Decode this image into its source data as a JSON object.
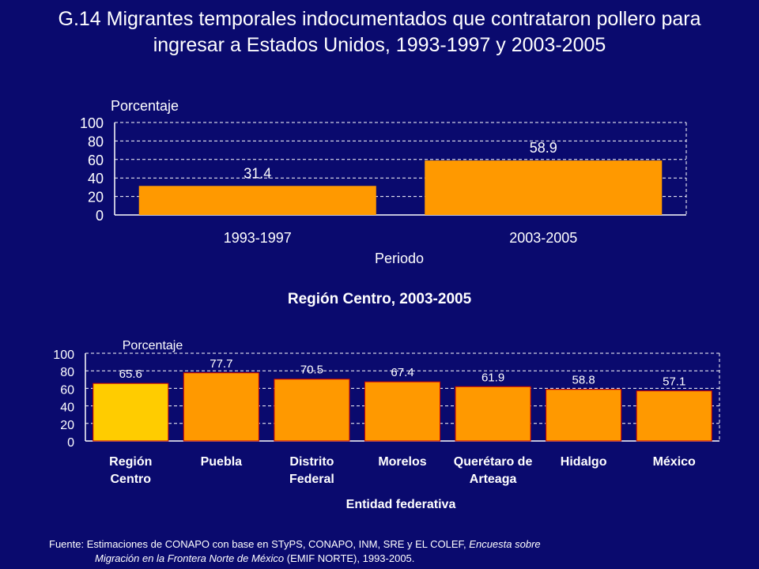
{
  "title": "G.14 Migrantes temporales indocumentados que contrataron pollero para ingresar a Estados Unidos, 1993-1997 y 2003-2005",
  "source": {
    "prefix": "Fuente: Estimaciones de CONAPO con base en STyPS, CONAPO, INM, SRE y EL COLEF,",
    "italic1": "Encuesta sobre",
    "italic2": "Migración en la Frontera Norte de México",
    "suffix": "(EMIF NORTE), 1993-2005."
  },
  "colors": {
    "background": "#0a0a6e",
    "bar": "#ff9900",
    "highlight_bar": "#ffcc00",
    "highlight_border": "#cc0000",
    "grid": "#ffffff"
  },
  "chart_data": [
    {
      "type": "bar",
      "title": "",
      "ylabel": "Porcentaje",
      "xlabel": "Periodo",
      "ylim": [
        0,
        100
      ],
      "yticks": [
        0,
        20,
        40,
        60,
        80,
        100
      ],
      "grid": true,
      "categories": [
        "1993-1997",
        "2003-2005"
      ],
      "values": [
        31.4,
        58.9
      ],
      "labels": [
        "31.4",
        "58.9"
      ]
    },
    {
      "type": "bar",
      "title": "Región Centro, 2003-2005",
      "ylabel": "Porcentaje",
      "xlabel": "Entidad federativa",
      "ylim": [
        0,
        100
      ],
      "yticks": [
        0,
        20,
        40,
        60,
        80,
        100
      ],
      "grid": true,
      "categories": [
        "Región Centro",
        "Puebla",
        "Distrito Federal",
        "Morelos",
        "Querétaro de Arteaga",
        "Hidalgo",
        "México"
      ],
      "category_lines": [
        [
          "Región",
          "Centro"
        ],
        [
          "Puebla"
        ],
        [
          "Distrito",
          "Federal"
        ],
        [
          "Morelos"
        ],
        [
          "Querétaro de",
          "Arteaga"
        ],
        [
          "Hidalgo"
        ],
        [
          "México"
        ]
      ],
      "values": [
        65.6,
        77.7,
        70.5,
        67.4,
        61.9,
        58.8,
        57.1
      ],
      "labels": [
        "65.6",
        "77.7",
        "70.5",
        "67.4",
        "61.9",
        "58.8",
        "57.1"
      ],
      "highlight": [
        0
      ]
    }
  ]
}
